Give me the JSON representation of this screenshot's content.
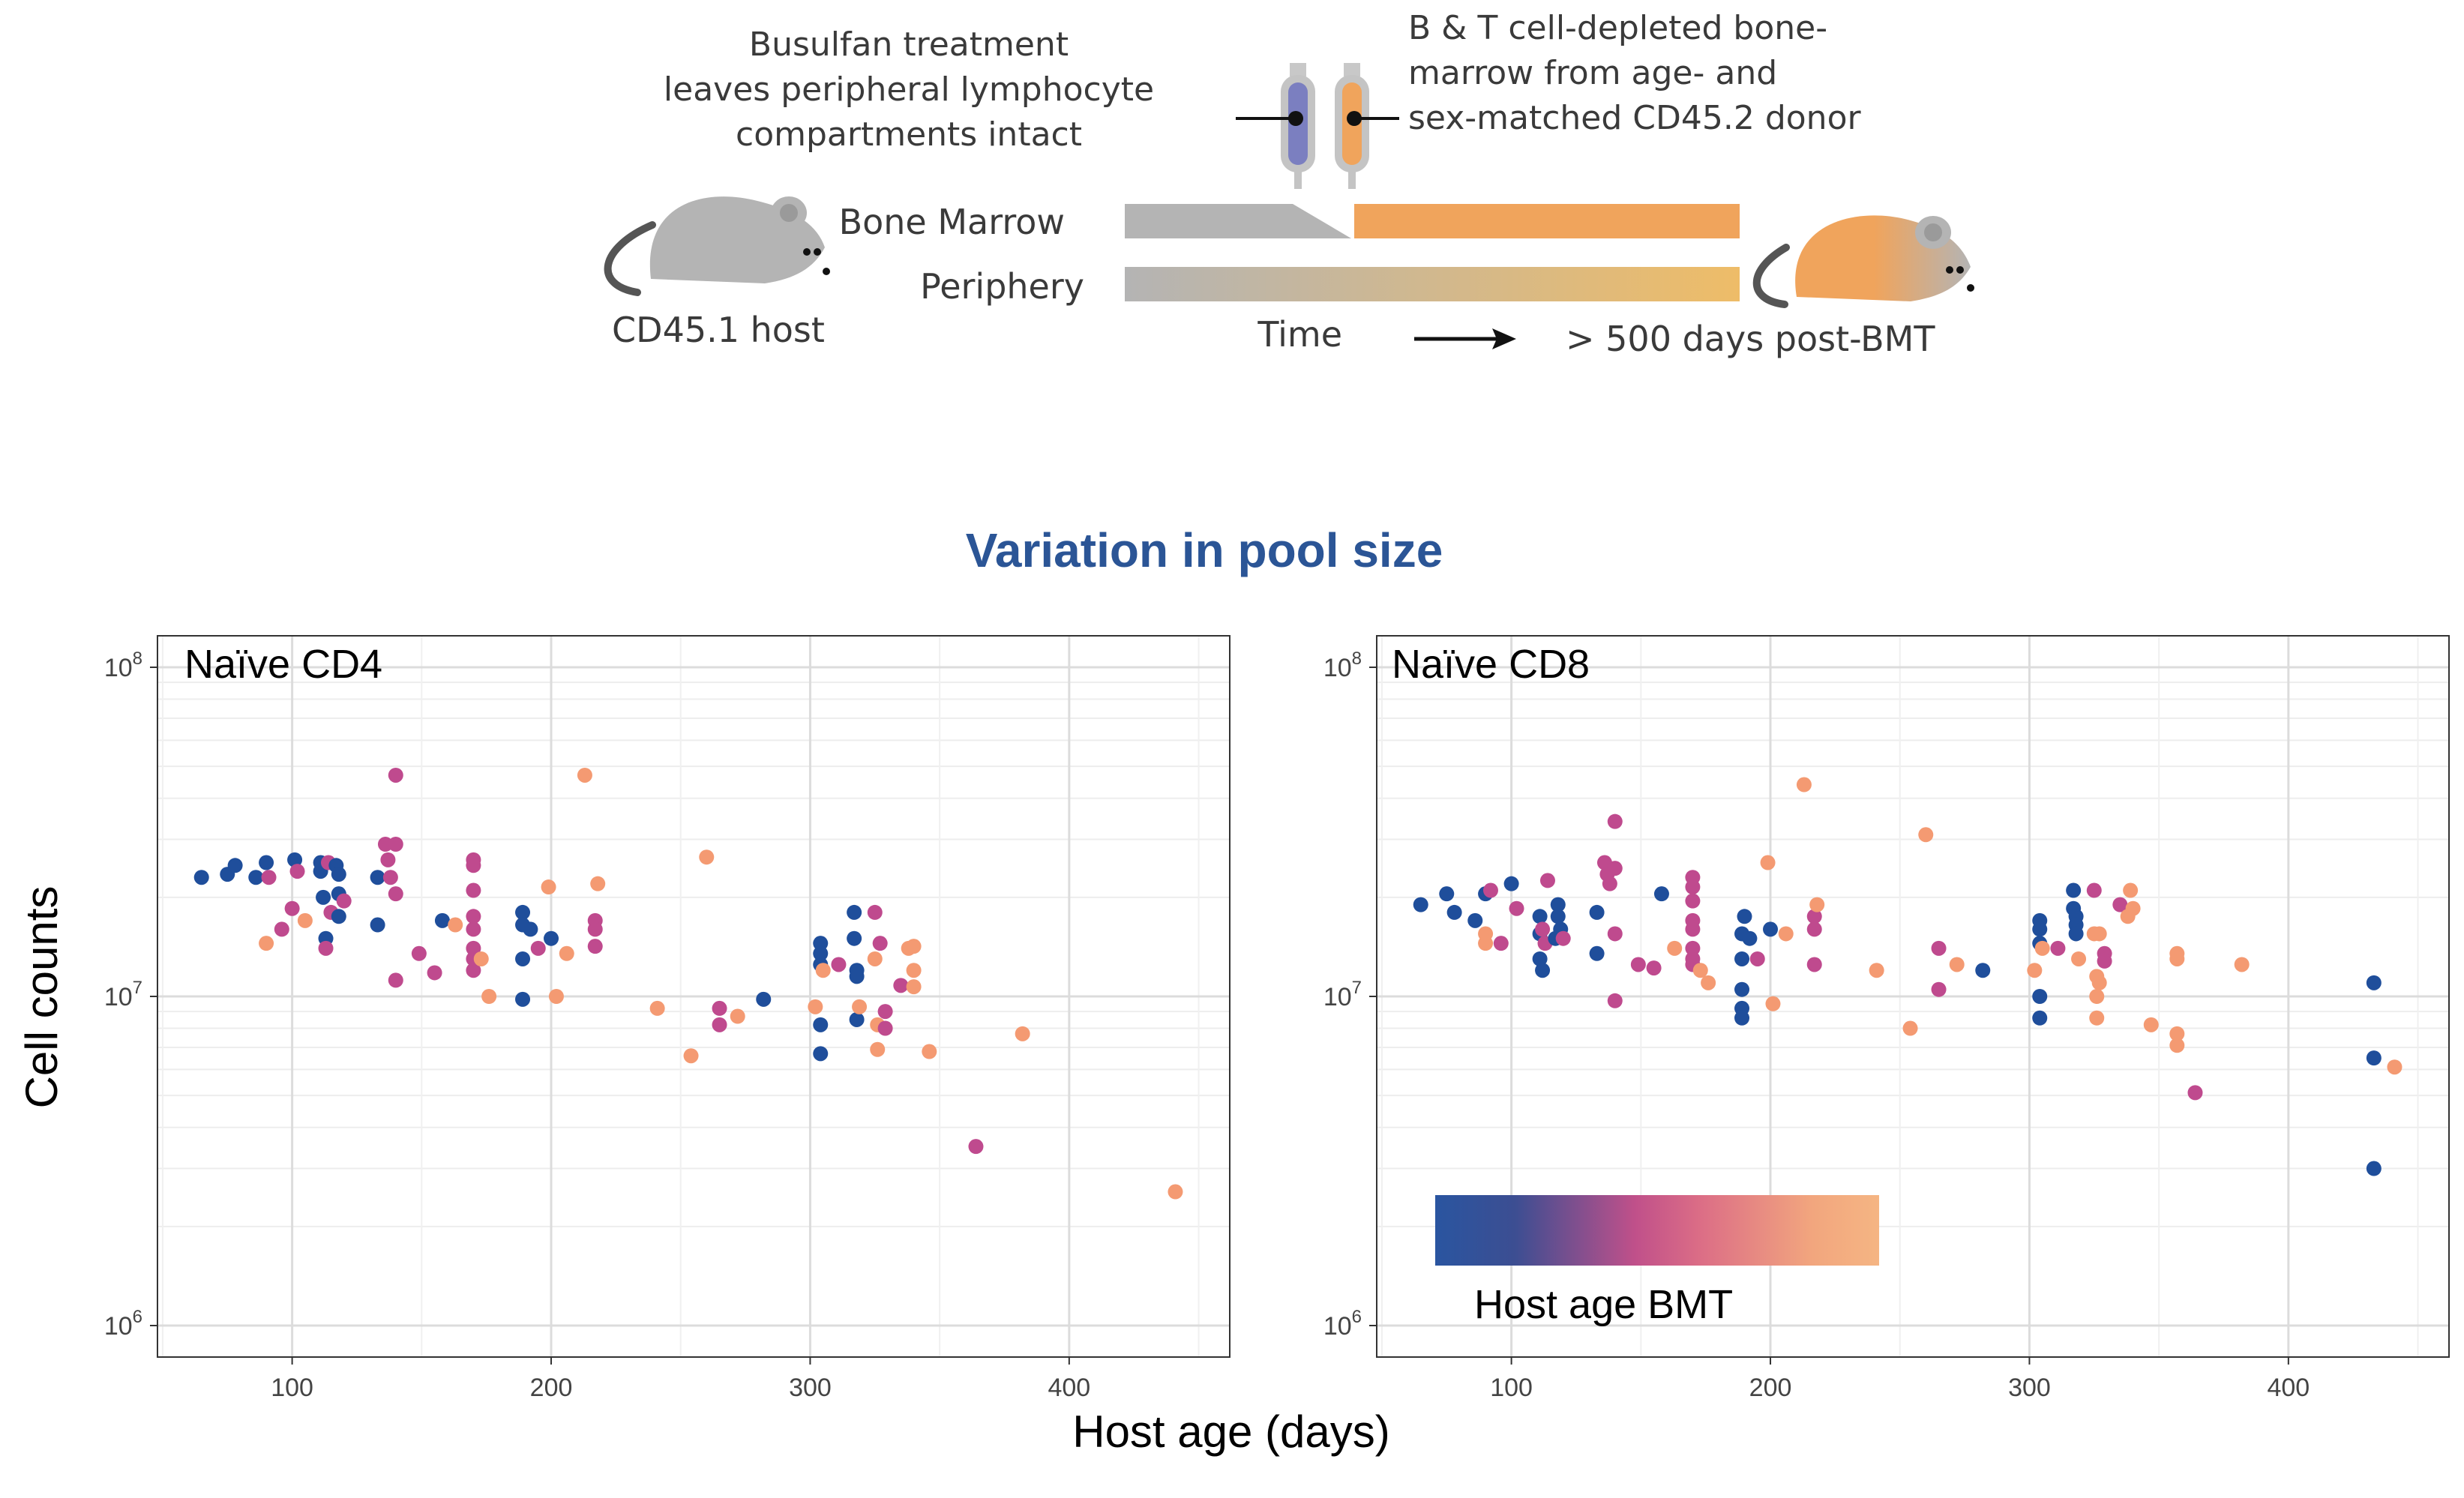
{
  "schematic": {
    "busulfan_text": [
      "Busulfan treatment",
      "leaves peripheral lymphocyte",
      "compartments intact"
    ],
    "donor_text": [
      "B & T cell-depleted bone-",
      "marrow from age- and",
      "sex-matched CD45.2 donor"
    ],
    "bone_marrow_label": "Bone Marrow",
    "periphery_label": "Periphery",
    "host_label": "CD45.1 host",
    "time_label": "Time",
    "post_label": "> 500 days post-BMT",
    "colors": {
      "host_grey": "#b4b4b4",
      "donor_orange": "#f0a45c",
      "syringe_blue": "#7b7fc0"
    }
  },
  "chart_title": "Variation in pool size",
  "y_axis_title": "Cell counts",
  "x_axis_title": "Host age (days)",
  "legend": {
    "title": "Host age BMT",
    "gradient_colors": [
      "#2a55a0",
      "#3c4e92",
      "#c0508a",
      "#dc6e86",
      "#f2a67e",
      "#f5b583"
    ]
  },
  "chart_data": [
    {
      "type": "scatter",
      "title": "Naïve CD4",
      "yscale": "log",
      "ylim": [
        1000000,
        100000000
      ],
      "xlim": [
        48,
        462
      ],
      "xticks": [
        100,
        200,
        300,
        400
      ],
      "yticks": [
        "10^6",
        "10^7",
        "10^8"
      ],
      "color_scale": "host age at BMT (dark blue = young, orange = old)",
      "points": [
        [
          65,
          23000000.0,
          "#1f4e9b"
        ],
        [
          75,
          23500000.0,
          "#1f4e9b"
        ],
        [
          78,
          25000000.0,
          "#1f4e9b"
        ],
        [
          86,
          23000000.0,
          "#1f4e9b"
        ],
        [
          90,
          25500000.0,
          "#1f4e9b"
        ],
        [
          90,
          14500000.0,
          "#f49a72"
        ],
        [
          91,
          23000000.0,
          "#bf4a8e"
        ],
        [
          96,
          16000000.0,
          "#bf4a8e"
        ],
        [
          100,
          18500000.0,
          "#bf4a8e"
        ],
        [
          101,
          26000000.0,
          "#1f4e9b"
        ],
        [
          102,
          24000000.0,
          "#bf4a8e"
        ],
        [
          105,
          17000000.0,
          "#f49a72"
        ],
        [
          111,
          25500000.0,
          "#1f4e9b"
        ],
        [
          111,
          24000000.0,
          "#1f4e9b"
        ],
        [
          112,
          20000000.0,
          "#1f4e9b"
        ],
        [
          113,
          15000000.0,
          "#1f4e9b"
        ],
        [
          113,
          14000000.0,
          "#bf4a8e"
        ],
        [
          114,
          25500000.0,
          "#bf4a8e"
        ],
        [
          115,
          18000000.0,
          "#bf4a8e"
        ],
        [
          117,
          25000000.0,
          "#1f4e9b"
        ],
        [
          118,
          23500000.0,
          "#1f4e9b"
        ],
        [
          118,
          20500000.0,
          "#1f4e9b"
        ],
        [
          118,
          17500000.0,
          "#1f4e9b"
        ],
        [
          120,
          19500000.0,
          "#bf4a8e"
        ],
        [
          133,
          16500000.0,
          "#1f4e9b"
        ],
        [
          133,
          23000000.0,
          "#1f4e9b"
        ],
        [
          136,
          29000000.0,
          "#bf4a8e"
        ],
        [
          137,
          26000000.0,
          "#bf4a8e"
        ],
        [
          138,
          23000000.0,
          "#bf4a8e"
        ],
        [
          140,
          29000000.0,
          "#bf4a8e"
        ],
        [
          140,
          20500000.0,
          "#bf4a8e"
        ],
        [
          140,
          47000000.0,
          "#bf4a8e"
        ],
        [
          140,
          11200000.0,
          "#bf4a8e"
        ],
        [
          149,
          13500000.0,
          "#bf4a8e"
        ],
        [
          155,
          11800000.0,
          "#bf4a8e"
        ],
        [
          158,
          17000000.0,
          "#1f4e9b"
        ],
        [
          163,
          16500000.0,
          "#f49a72"
        ],
        [
          170,
          26000000.0,
          "#bf4a8e"
        ],
        [
          170,
          25000000.0,
          "#bf4a8e"
        ],
        [
          170,
          21000000.0,
          "#bf4a8e"
        ],
        [
          170,
          17500000.0,
          "#bf4a8e"
        ],
        [
          170,
          16000000.0,
          "#bf4a8e"
        ],
        [
          170,
          14000000.0,
          "#bf4a8e"
        ],
        [
          170,
          13000000.0,
          "#bf4a8e"
        ],
        [
          170,
          12000000.0,
          "#bf4a8e"
        ],
        [
          173,
          13000000.0,
          "#f49a72"
        ],
        [
          176,
          10000000.0,
          "#f49a72"
        ],
        [
          189,
          18000000.0,
          "#1f4e9b"
        ],
        [
          189,
          16500000.0,
          "#1f4e9b"
        ],
        [
          189,
          13000000.0,
          "#1f4e9b"
        ],
        [
          189,
          9800000.0,
          "#1f4e9b"
        ],
        [
          192,
          16000000.0,
          "#1f4e9b"
        ],
        [
          195,
          14000000.0,
          "#bf4a8e"
        ],
        [
          199,
          21500000.0,
          "#f49a72"
        ],
        [
          200,
          15000000.0,
          "#1f4e9b"
        ],
        [
          202,
          10000000.0,
          "#f49a72"
        ],
        [
          206,
          13500000.0,
          "#f49a72"
        ],
        [
          213,
          47000000.0,
          "#f49a72"
        ],
        [
          217,
          17000000.0,
          "#bf4a8e"
        ],
        [
          217,
          16000000.0,
          "#bf4a8e"
        ],
        [
          217,
          14200000.0,
          "#bf4a8e"
        ],
        [
          218,
          22000000.0,
          "#f49a72"
        ],
        [
          241,
          9200000.0,
          "#f49a72"
        ],
        [
          254,
          6600000.0,
          "#f49a72"
        ],
        [
          260,
          26500000.0,
          "#f49a72"
        ],
        [
          265,
          9200000.0,
          "#bf4a8e"
        ],
        [
          265,
          8200000.0,
          "#bf4a8e"
        ],
        [
          272,
          8700000.0,
          "#f49a72"
        ],
        [
          282,
          9800000.0,
          "#1f4e9b"
        ],
        [
          302,
          9300000.0,
          "#f49a72"
        ],
        [
          304,
          14500000.0,
          "#1f4e9b"
        ],
        [
          304,
          13500000.0,
          "#1f4e9b"
        ],
        [
          304,
          12500000.0,
          "#1f4e9b"
        ],
        [
          304,
          8200000.0,
          "#1f4e9b"
        ],
        [
          304,
          6700000.0,
          "#1f4e9b"
        ],
        [
          305,
          12000000.0,
          "#f49a72"
        ],
        [
          311,
          12500000.0,
          "#bf4a8e"
        ],
        [
          317,
          18000000.0,
          "#1f4e9b"
        ],
        [
          317,
          15000000.0,
          "#1f4e9b"
        ],
        [
          318,
          12000000.0,
          "#1f4e9b"
        ],
        [
          318,
          11500000.0,
          "#1f4e9b"
        ],
        [
          318,
          8500000.0,
          "#1f4e9b"
        ],
        [
          319,
          9300000.0,
          "#f49a72"
        ],
        [
          325,
          18000000.0,
          "#bf4a8e"
        ],
        [
          325,
          13000000.0,
          "#f49a72"
        ],
        [
          326,
          8200000.0,
          "#f49a72"
        ],
        [
          326,
          6900000.0,
          "#f49a72"
        ],
        [
          327,
          14500000.0,
          "#bf4a8e"
        ],
        [
          329,
          9000000.0,
          "#bf4a8e"
        ],
        [
          329,
          8000000.0,
          "#bf4a8e"
        ],
        [
          335,
          10800000.0,
          "#bf4a8e"
        ],
        [
          338,
          14000000.0,
          "#f49a72"
        ],
        [
          340,
          14200000.0,
          "#f49a72"
        ],
        [
          340,
          12000000.0,
          "#f49a72"
        ],
        [
          340,
          10700000.0,
          "#f49a72"
        ],
        [
          346,
          6800000.0,
          "#f49a72"
        ],
        [
          364,
          3500000.0,
          "#bf4a8e"
        ],
        [
          382,
          7700000.0,
          "#f49a72"
        ],
        [
          441,
          2550000.0,
          "#f49a72"
        ]
      ]
    },
    {
      "type": "scatter",
      "title": "Naïve CD8",
      "yscale": "log",
      "ylim": [
        1000000,
        100000000
      ],
      "xlim": [
        48,
        462
      ],
      "xticks": [
        100,
        200,
        300,
        400
      ],
      "yticks": [
        "10^6",
        "10^7",
        "10^8"
      ],
      "color_scale": "host age at BMT (dark blue = young, orange = old)",
      "points": [
        [
          65,
          19000000.0,
          "#1f4e9b"
        ],
        [
          75,
          20500000.0,
          "#1f4e9b"
        ],
        [
          78,
          18000000.0,
          "#1f4e9b"
        ],
        [
          86,
          17000000.0,
          "#1f4e9b"
        ],
        [
          90,
          20500000.0,
          "#1f4e9b"
        ],
        [
          90,
          14500000.0,
          "#f49a72"
        ],
        [
          90,
          15500000.0,
          "#f49a72"
        ],
        [
          92,
          21000000.0,
          "#bf4a8e"
        ],
        [
          96,
          14500000.0,
          "#bf4a8e"
        ],
        [
          100,
          22000000.0,
          "#1f4e9b"
        ],
        [
          102,
          18500000.0,
          "#bf4a8e"
        ],
        [
          111,
          17500000.0,
          "#1f4e9b"
        ],
        [
          111,
          15500000.0,
          "#1f4e9b"
        ],
        [
          111,
          13000000.0,
          "#1f4e9b"
        ],
        [
          112,
          12000000.0,
          "#1f4e9b"
        ],
        [
          112,
          16000000.0,
          "#bf4a8e"
        ],
        [
          113,
          14500000.0,
          "#bf4a8e"
        ],
        [
          114,
          22500000.0,
          "#bf4a8e"
        ],
        [
          117,
          15000000.0,
          "#1f4e9b"
        ],
        [
          118,
          19000000.0,
          "#1f4e9b"
        ],
        [
          118,
          17500000.0,
          "#1f4e9b"
        ],
        [
          119,
          16000000.0,
          "#1f4e9b"
        ],
        [
          120,
          15000000.0,
          "#bf4a8e"
        ],
        [
          133,
          18000000.0,
          "#1f4e9b"
        ],
        [
          133,
          13500000.0,
          "#1f4e9b"
        ],
        [
          136,
          25500000.0,
          "#bf4a8e"
        ],
        [
          137,
          23500000.0,
          "#bf4a8e"
        ],
        [
          138,
          22000000.0,
          "#bf4a8e"
        ],
        [
          140,
          34000000.0,
          "#bf4a8e"
        ],
        [
          140,
          24500000.0,
          "#bf4a8e"
        ],
        [
          140,
          15500000.0,
          "#bf4a8e"
        ],
        [
          140,
          9700000.0,
          "#bf4a8e"
        ],
        [
          149,
          12500000.0,
          "#bf4a8e"
        ],
        [
          155,
          12200000.0,
          "#bf4a8e"
        ],
        [
          158,
          20500000.0,
          "#1f4e9b"
        ],
        [
          163,
          14000000.0,
          "#f49a72"
        ],
        [
          170,
          23000000.0,
          "#bf4a8e"
        ],
        [
          170,
          21500000.0,
          "#bf4a8e"
        ],
        [
          170,
          19500000.0,
          "#bf4a8e"
        ],
        [
          170,
          17000000.0,
          "#bf4a8e"
        ],
        [
          170,
          16000000.0,
          "#bf4a8e"
        ],
        [
          170,
          14000000.0,
          "#bf4a8e"
        ],
        [
          170,
          13000000.0,
          "#bf4a8e"
        ],
        [
          170,
          12500000.0,
          "#bf4a8e"
        ],
        [
          173,
          12000000.0,
          "#f49a72"
        ],
        [
          176,
          11000000.0,
          "#f49a72"
        ],
        [
          189,
          15500000.0,
          "#1f4e9b"
        ],
        [
          189,
          13000000.0,
          "#1f4e9b"
        ],
        [
          189,
          10500000.0,
          "#1f4e9b"
        ],
        [
          189,
          9200000.0,
          "#1f4e9b"
        ],
        [
          189,
          8600000.0,
          "#1f4e9b"
        ],
        [
          190,
          17500000.0,
          "#1f4e9b"
        ],
        [
          192,
          15000000.0,
          "#1f4e9b"
        ],
        [
          195,
          13000000.0,
          "#bf4a8e"
        ],
        [
          199,
          25500000.0,
          "#f49a72"
        ],
        [
          200,
          16000000.0,
          "#1f4e9b"
        ],
        [
          201,
          9500000.0,
          "#f49a72"
        ],
        [
          206,
          15500000.0,
          "#f49a72"
        ],
        [
          213,
          44000000.0,
          "#f49a72"
        ],
        [
          217,
          17500000.0,
          "#bf4a8e"
        ],
        [
          217,
          16000000.0,
          "#bf4a8e"
        ],
        [
          217,
          12500000.0,
          "#bf4a8e"
        ],
        [
          218,
          19000000.0,
          "#f49a72"
        ],
        [
          241,
          12000000.0,
          "#f49a72"
        ],
        [
          254,
          8000000.0,
          "#f49a72"
        ],
        [
          260,
          31000000.0,
          "#f49a72"
        ],
        [
          265,
          14000000.0,
          "#bf4a8e"
        ],
        [
          265,
          10500000.0,
          "#bf4a8e"
        ],
        [
          272,
          12500000.0,
          "#f49a72"
        ],
        [
          282,
          12000000.0,
          "#1f4e9b"
        ],
        [
          302,
          12000000.0,
          "#f49a72"
        ],
        [
          304,
          17000000.0,
          "#1f4e9b"
        ],
        [
          304,
          16000000.0,
          "#1f4e9b"
        ],
        [
          304,
          14500000.0,
          "#1f4e9b"
        ],
        [
          304,
          10000000.0,
          "#1f4e9b"
        ],
        [
          304,
          8600000.0,
          "#1f4e9b"
        ],
        [
          305,
          14000000.0,
          "#f49a72"
        ],
        [
          311,
          14000000.0,
          "#bf4a8e"
        ],
        [
          317,
          21000000.0,
          "#1f4e9b"
        ],
        [
          317,
          18500000.0,
          "#1f4e9b"
        ],
        [
          318,
          17500000.0,
          "#1f4e9b"
        ],
        [
          318,
          16500000.0,
          "#1f4e9b"
        ],
        [
          318,
          15500000.0,
          "#1f4e9b"
        ],
        [
          319,
          13000000.0,
          "#f49a72"
        ],
        [
          325,
          21000000.0,
          "#bf4a8e"
        ],
        [
          325,
          15500000.0,
          "#f49a72"
        ],
        [
          326,
          11500000.0,
          "#f49a72"
        ],
        [
          326,
          10000000.0,
          "#f49a72"
        ],
        [
          326,
          8600000.0,
          "#f49a72"
        ],
        [
          327,
          15500000.0,
          "#f49a72"
        ],
        [
          327,
          11000000.0,
          "#f49a72"
        ],
        [
          329,
          13500000.0,
          "#bf4a8e"
        ],
        [
          329,
          12800000.0,
          "#bf4a8e"
        ],
        [
          335,
          19000000.0,
          "#bf4a8e"
        ],
        [
          338,
          17500000.0,
          "#f49a72"
        ],
        [
          339,
          21000000.0,
          "#f49a72"
        ],
        [
          340,
          18500000.0,
          "#f49a72"
        ],
        [
          347,
          8200000.0,
          "#f49a72"
        ],
        [
          357,
          13500000.0,
          "#f49a72"
        ],
        [
          357,
          13000000.0,
          "#f49a72"
        ],
        [
          357,
          7700000.0,
          "#f49a72"
        ],
        [
          357,
          7100000.0,
          "#f49a72"
        ],
        [
          364,
          5100000.0,
          "#bf4a8e"
        ],
        [
          382,
          12500000.0,
          "#f49a72"
        ],
        [
          433,
          11000000.0,
          "#1f4e9b"
        ],
        [
          433,
          6500000.0,
          "#1f4e9b"
        ],
        [
          433,
          3000000.0,
          "#1f4e9b"
        ],
        [
          441,
          6100000.0,
          "#f49a72"
        ]
      ]
    }
  ]
}
